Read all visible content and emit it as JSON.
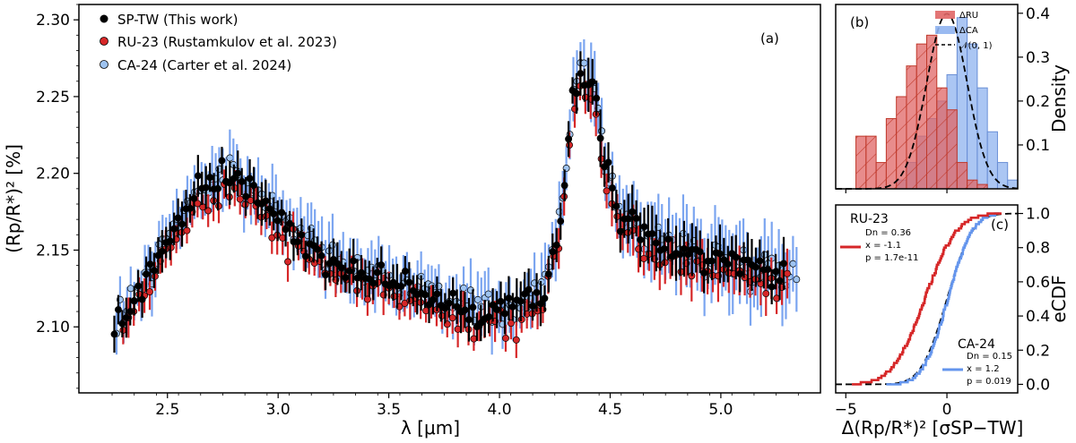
{
  "colors": {
    "sp": "#000000",
    "ru": "#d62728",
    "ca": "#6495ed",
    "ru_fill": "#e06666",
    "ca_fill": "#8fb3ef"
  },
  "chart_data": [
    {
      "type": "scatter",
      "panel_label": "(a)",
      "xlabel": "λ [μm]",
      "ylabel": "(Rp/R*)² [%]",
      "xlim": [
        2.1,
        5.45
      ],
      "ylim": [
        2.057,
        2.31
      ],
      "xticks": [
        "2.5",
        "3.0",
        "3.5",
        "4.0",
        "4.5",
        "5.0"
      ],
      "yticks": [
        "2.10",
        "2.15",
        "2.20",
        "2.25",
        "2.30"
      ],
      "legend": [
        {
          "name": "SP-TW (This work)"
        },
        {
          "name": "RU-23 (Rustamkulov et al. 2023)"
        },
        {
          "name": "CA-24 (Carter et al. 2024)"
        }
      ],
      "spectrum_x": [
        2.25,
        2.3,
        2.4,
        2.5,
        2.6,
        2.7,
        2.8,
        2.9,
        3.0,
        3.1,
        3.2,
        3.3,
        3.4,
        3.5,
        3.6,
        3.7,
        3.8,
        3.9,
        4.0,
        4.1,
        4.2,
        4.28,
        4.33,
        4.38,
        4.43,
        4.48,
        4.55,
        4.65,
        4.75,
        4.85,
        4.95,
        5.05,
        5.15,
        5.25,
        5.35
      ],
      "spectrum_y": [
        2.097,
        2.104,
        2.13,
        2.157,
        2.178,
        2.195,
        2.2,
        2.186,
        2.17,
        2.158,
        2.148,
        2.14,
        2.135,
        2.131,
        2.126,
        2.12,
        2.113,
        2.107,
        2.11,
        2.114,
        2.122,
        2.175,
        2.252,
        2.262,
        2.25,
        2.205,
        2.17,
        2.16,
        2.154,
        2.149,
        2.145,
        2.142,
        2.138,
        2.135,
        2.134
      ],
      "series": [
        {
          "name": "SP-TW",
          "x_range": [
            2.26,
            5.3
          ],
          "step": 0.018,
          "offset": 0.0,
          "err": 0.011,
          "noise": 0.007
        },
        {
          "name": "RU-23",
          "x_range": [
            2.3,
            5.32
          ],
          "step": 0.024,
          "offset": -0.009,
          "err": 0.01,
          "noise": 0.006
        },
        {
          "name": "CA-24",
          "x_range": [
            2.27,
            5.35
          ],
          "step": 0.016,
          "offset": 0.002,
          "err": 0.016,
          "noise": 0.008
        }
      ]
    },
    {
      "type": "histogram",
      "panel_label": "(b)",
      "ylabel": "Density",
      "ylim": [
        0,
        0.42
      ],
      "yticks": [
        "0.1",
        "0.2",
        "0.3",
        "0.4"
      ],
      "bin_width": 0.5,
      "ru_bins": {
        "start": -4.5,
        "heights": [
          0.12,
          0.12,
          0.06,
          0.16,
          0.21,
          0.28,
          0.33,
          0.35,
          0.23,
          0.18,
          0.06,
          0.02,
          0.01,
          0.0
        ]
      },
      "ca_bins": {
        "start": -2.5,
        "heights": [
          0.02,
          0.06,
          0.12,
          0.16,
          0.2,
          0.26,
          0.39,
          0.33,
          0.23,
          0.13,
          0.06,
          0.02
        ]
      },
      "normal_curve": {
        "mean": 0,
        "sigma": 1
      },
      "legend": [
        {
          "name": "ΔRU"
        },
        {
          "name": "ΔCA"
        },
        {
          "name": "𝒩(0, 1)"
        }
      ]
    },
    {
      "type": "line",
      "panel_label": "(c)",
      "xlabel": "Δ(Rp/R*)² [σSP−TW]",
      "ylabel": "eCDF",
      "xlim": [
        -5.5,
        3.5
      ],
      "ylim": [
        -0.05,
        1.05
      ],
      "xticks": [
        "−5",
        "0",
        "5"
      ],
      "yticks": [
        "0.0",
        "0.2",
        "0.4",
        "0.6",
        "0.8",
        "1.0"
      ],
      "ru_stats": {
        "title": "RU-23",
        "lines": [
          "Dn = 0.36",
          "x = -1.1",
          "p = 1.7e-11"
        ]
      },
      "ca_stats": {
        "title": "CA-24",
        "lines": [
          "Dn = 0.15",
          "x = 1.2",
          "p = 0.019"
        ]
      },
      "ru_ecdf": {
        "mean": -1.1,
        "sigma": 1.25,
        "xmin": -4.7,
        "xmax": 2.7
      },
      "ca_ecdf": {
        "mean": 0.05,
        "sigma": 0.95,
        "xmin": -3.0,
        "xmax": 2.6
      }
    }
  ]
}
